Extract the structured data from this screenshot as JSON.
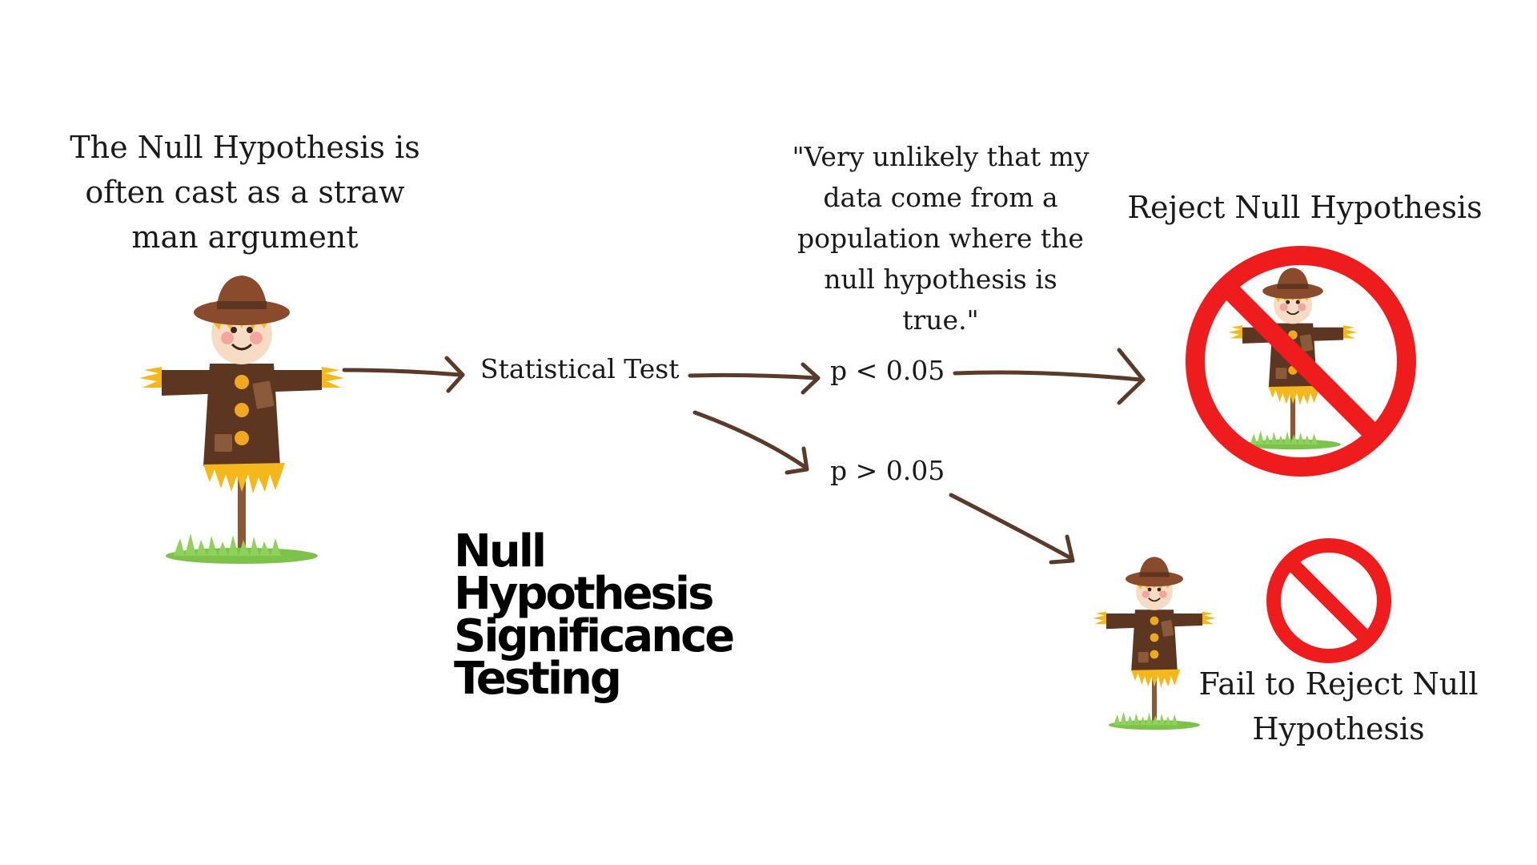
{
  "intro_lines": [
    "The Null Hypothesis is",
    "often cast as a straw",
    "man argument"
  ],
  "statistical_test": "Statistical Test",
  "p_low": "p < 0.05",
  "p_high": "p > 0.05",
  "quote_lines": [
    "\"Very unlikely that my",
    "data come from a",
    "population where the",
    "null hypothesis is",
    "true.\""
  ],
  "reject_label": "Reject Null Hypothesis",
  "fail_lines": [
    "Fail to Reject Null",
    "Hypothesis"
  ],
  "title_lines": [
    "Null",
    "Hypothesis",
    "Significance",
    "Testing"
  ],
  "icons": {
    "scarecrow": "scarecrow-icon",
    "no_sign": "prohibition-sign-icon"
  },
  "colors": {
    "arrow": "#5a3a28",
    "no_sign": "#ee1c1c",
    "coat": "#5c3620",
    "straw": "#f4b71c",
    "hat": "#8a4a2c",
    "grass": "#7dc24a"
  }
}
